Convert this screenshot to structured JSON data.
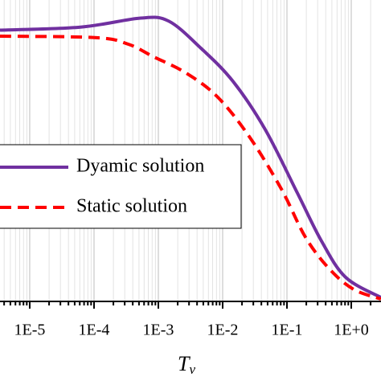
{
  "chart_data": {
    "type": "line",
    "log_x": true,
    "grid": true,
    "x_label": "T",
    "x_label_subscript": "v",
    "xlim": [
      3.45e-06,
      2.9
    ],
    "ylim": [
      0,
      1
    ],
    "xticks": [
      {
        "value": 1e-05,
        "label": "1E-5"
      },
      {
        "value": 0.0001,
        "label": "1E-4"
      },
      {
        "value": 0.001,
        "label": "1E-3"
      },
      {
        "value": 0.01,
        "label": "1E-2"
      },
      {
        "value": 0.1,
        "label": "1E-1"
      },
      {
        "value": 1,
        "label": "1E+0"
      }
    ],
    "legend": "left",
    "series": [
      {
        "name": "Dyamic solution",
        "color": "#7030a0",
        "dash": false,
        "x": [
          3.45e-06,
          6.17e-05,
          0.000531,
          0.00145,
          0.0046,
          0.0145,
          0.046,
          0.145,
          0.345,
          0.818,
          2.9
        ],
        "values": [
          0.9,
          0.91,
          0.94,
          0.93,
          0.84,
          0.73,
          0.57,
          0.36,
          0.2,
          0.08,
          0.013
        ]
      },
      {
        "name": "Static solution",
        "color": "#ff0000",
        "dash": true,
        "x": [
          3.45e-06,
          0.000109,
          0.000345,
          0.000818,
          0.00259,
          0.00818,
          0.0259,
          0.0818,
          0.194,
          0.46,
          1.09,
          2.9
        ],
        "values": [
          0.88,
          0.875,
          0.853,
          0.813,
          0.76,
          0.68,
          0.547,
          0.373,
          0.213,
          0.107,
          0.04,
          0.008
        ]
      }
    ]
  }
}
